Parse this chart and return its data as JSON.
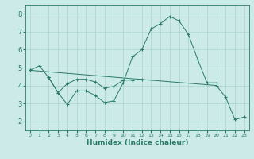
{
  "xlabel": "Humidex (Indice chaleur)",
  "background_color": "#cceae7",
  "grid_color": "#aad4d0",
  "line_color": "#2a7a6a",
  "xlim": [
    -0.5,
    23.5
  ],
  "ylim": [
    1.5,
    8.5
  ],
  "xticks": [
    0,
    1,
    2,
    3,
    4,
    5,
    6,
    7,
    8,
    9,
    10,
    11,
    12,
    13,
    14,
    15,
    16,
    17,
    18,
    19,
    20,
    21,
    22,
    23
  ],
  "yticks": [
    2,
    3,
    4,
    5,
    6,
    7,
    8
  ],
  "line_segments": [
    {
      "x": [
        0,
        1,
        2
      ],
      "y": [
        4.85,
        5.1,
        4.45
      ]
    },
    {
      "x": [
        2,
        3,
        4,
        5,
        6,
        7,
        8,
        9,
        10,
        11,
        12,
        13,
        14,
        15,
        16,
        17,
        18,
        19,
        20
      ],
      "y": [
        4.45,
        3.6,
        2.95,
        3.7,
        3.7,
        3.45,
        3.05,
        3.15,
        4.15,
        5.6,
        6.0,
        7.15,
        7.45,
        7.85,
        7.6,
        6.85,
        5.45,
        4.15,
        4.15
      ]
    },
    {
      "x": [
        2,
        3,
        4,
        5,
        6,
        7,
        8,
        9,
        10,
        11,
        12
      ],
      "y": [
        4.45,
        3.6,
        4.1,
        4.35,
        4.35,
        4.2,
        3.85,
        3.95,
        4.3,
        4.3,
        4.35
      ]
    },
    {
      "x": [
        0,
        20,
        21,
        22,
        23
      ],
      "y": [
        4.85,
        4.0,
        3.35,
        2.1,
        2.25
      ]
    }
  ]
}
